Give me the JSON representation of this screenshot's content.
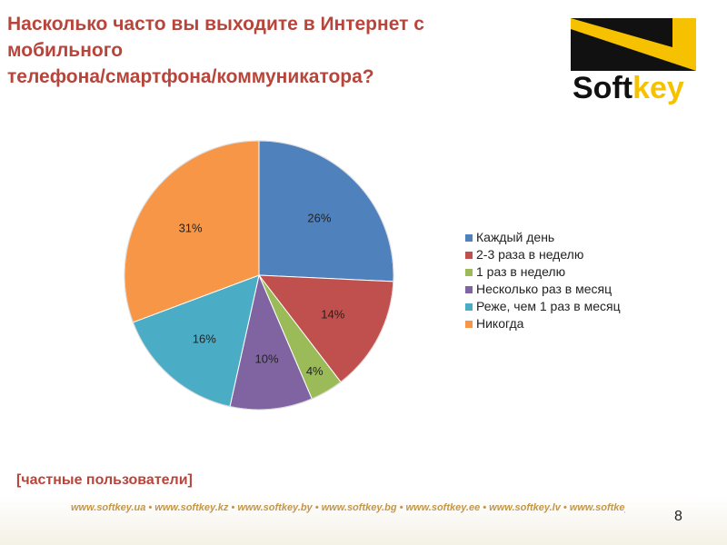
{
  "header": {
    "title_line1": "Насколько часто вы выходите в Интернет с мобильного",
    "title_line2": "телефона/смартфона/коммуникатора?"
  },
  "logo": {
    "text": "Softkey",
    "colors": {
      "black": "#111111",
      "yellow": "#f6c200"
    }
  },
  "chart_data": {
    "type": "pie",
    "labels": [
      "Каждый день",
      "2-3 раза в неделю",
      "1 раз в неделю",
      "Несколько раз в месяц",
      "Реже, чем 1 раз в месяц",
      "Никогда"
    ],
    "values": [
      26,
      14,
      4,
      10,
      16,
      31
    ],
    "value_labels": [
      "26%",
      "14%",
      "4%",
      "10%",
      "16%",
      "31%"
    ],
    "colors": [
      "#4f81bd",
      "#c0504d",
      "#9bbb59",
      "#8064a2",
      "#4bacc6",
      "#f79646"
    ],
    "legend_position": "right",
    "start_angle": "top, clockwise"
  },
  "subtitle": "[частные пользователи]",
  "footer": {
    "links": "www.softkey.ua • www.softkey.kz • www.softkey.by • www.softkey.bg • www.softkey.ee • www.softkey.lv • www.softkey.lt • www.softkey.pl • rus.softkey.co.il • rus.softkey.md"
  },
  "page_number": "8"
}
